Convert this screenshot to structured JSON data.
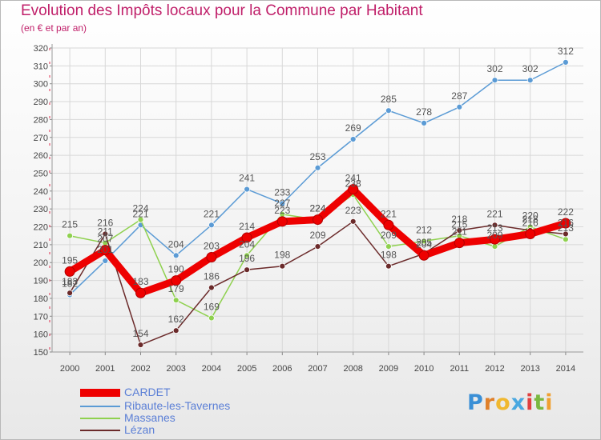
{
  "chart_data": {
    "type": "line",
    "title": "Evolution des Impôts locaux pour la Commune par Habitant",
    "subtitle": "(en € et par an)",
    "categories": [
      "2000",
      "2001",
      "2002",
      "2003",
      "2004",
      "2005",
      "2006",
      "2007",
      "2008",
      "2009",
      "2010",
      "2011",
      "2012",
      "2013",
      "2014"
    ],
    "ylim": [
      150,
      320
    ],
    "yticks": [
      150,
      160,
      170,
      180,
      190,
      200,
      210,
      220,
      230,
      240,
      250,
      260,
      270,
      280,
      290,
      300,
      310,
      320
    ],
    "series": [
      {
        "name": "Ribaute-les-Tavernes",
        "color": "#5b9bd5",
        "values": [
          182,
          201,
          221,
          204,
          221,
          241,
          233,
          253,
          269,
          285,
          278,
          287,
          302,
          302,
          312
        ]
      },
      {
        "name": "Massanes",
        "color": "#8fd14f",
        "values": [
          215,
          211,
          224,
          179,
          169,
          204,
          227,
          224,
          238,
          209,
          212,
          215,
          209,
          220,
          213
        ]
      },
      {
        "name": "Lézan",
        "color": "#6b2a2a",
        "values": [
          183,
          216,
          154,
          162,
          186,
          196,
          198,
          209,
          223,
          198,
          205,
          218,
          221,
          218,
          216
        ]
      },
      {
        "name": "CARDET",
        "color": "#ee0000",
        "values": [
          195,
          207,
          183,
          190,
          203,
          214,
          223,
          224,
          241,
          221,
          204,
          211,
          213,
          216,
          222
        ]
      }
    ],
    "legend": [
      "CARDET",
      "Ribaute-les-Tavernes",
      "Massanes",
      "Lézan"
    ]
  },
  "logo": [
    "P",
    "r",
    "o",
    "x",
    "i",
    "t",
    "i"
  ]
}
